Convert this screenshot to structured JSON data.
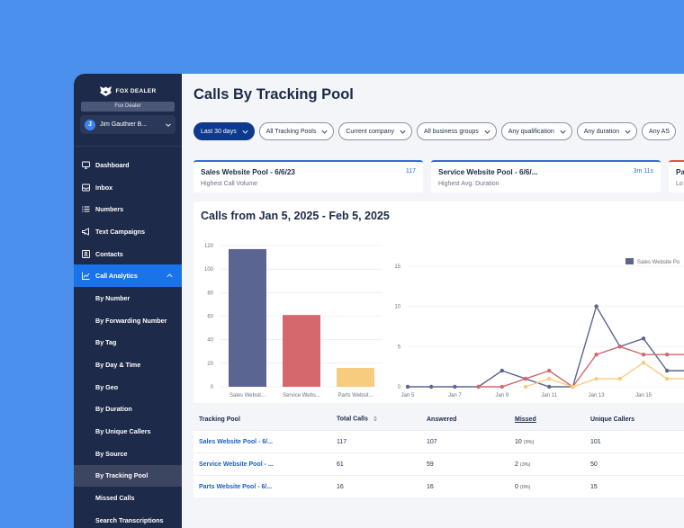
{
  "sidebar": {
    "logo_text": "FOX DEALER",
    "dealer": "Fox Dealer",
    "user_initial": "J",
    "user_name": "Jim Gauthier B...",
    "nav": [
      {
        "label": "Dashboard",
        "icon": "monitor-icon"
      },
      {
        "label": "Inbox",
        "icon": "inbox-icon"
      },
      {
        "label": "Numbers",
        "icon": "list-icon"
      },
      {
        "label": "Text Campaigns",
        "icon": "megaphone-icon"
      },
      {
        "label": "Contacts",
        "icon": "contact-card-icon"
      },
      {
        "label": "Call Analytics",
        "icon": "line-chart-icon"
      }
    ],
    "sub_items": [
      "By Number",
      "By Forwarding Number",
      "By Tag",
      "By Day & Time",
      "By Geo",
      "By Duration",
      "By Unique Callers",
      "By Source",
      "By Tracking Pool",
      "Missed Calls",
      "Search Transcriptions"
    ]
  },
  "page": {
    "title": "Calls By Tracking Pool"
  },
  "filters": [
    "Last 30 days",
    "All Tracking Pools",
    "Current company",
    "All business groups",
    "Any qualification",
    "Any duration",
    "Any AS"
  ],
  "cards": [
    {
      "title": "Sales Website Pool - 6/6/23",
      "value": "117",
      "sub": "Highest Call Volume"
    },
    {
      "title": "Service Website Pool - 6/6/...",
      "value": "3m 11s",
      "sub": "Highest Avg. Duration"
    },
    {
      "title": "Pa",
      "value": "",
      "sub": "Lo"
    }
  ],
  "chart_data": [
    {
      "type": "bar",
      "title": "Calls from Jan 5, 2025 - Feb 5, 2025",
      "categories": [
        "Sales Websit...",
        "Service Webs...",
        "Parts Websit..."
      ],
      "values": [
        117,
        61,
        16
      ],
      "yticks": [
        0,
        20,
        40,
        60,
        80,
        100,
        120
      ],
      "ylim": [
        0,
        120
      ],
      "colors": [
        "#5b6592",
        "#d4686c",
        "#f8cc7e"
      ],
      "grid": true
    },
    {
      "type": "line",
      "legend": "Sales Website Po",
      "legend_placement": "top-right",
      "x": [
        "Jan 5",
        "Jan 6",
        "Jan 7",
        "Jan 8",
        "Jan 9",
        "Jan 10",
        "Jan 11",
        "Jan 12",
        "Jan 13",
        "Jan 14",
        "Jan 15",
        "Jan 16",
        "Jan 17"
      ],
      "xticks": [
        "Jan 5",
        "Jan 7",
        "Jan 9",
        "Jan 11",
        "Jan 13",
        "Jan 15"
      ],
      "yticks": [
        0,
        5,
        10,
        15
      ],
      "ylim": [
        0,
        17
      ],
      "series": [
        {
          "name": "Sales Website Po",
          "color": "#5b6592",
          "values": [
            0,
            0,
            0,
            0,
            2,
            1,
            0,
            0,
            10,
            5,
            6,
            2,
            2
          ]
        },
        {
          "name": "",
          "color": "#d4686c",
          "values": [
            null,
            null,
            null,
            0,
            0,
            1,
            2,
            0,
            4,
            5,
            4,
            4,
            4
          ]
        },
        {
          "name": "",
          "color": "#f8cc7e",
          "values": [
            null,
            null,
            null,
            null,
            null,
            0,
            1,
            0,
            1,
            1,
            3,
            1,
            1
          ]
        }
      ]
    }
  ],
  "table": {
    "headers": [
      "Tracking Pool",
      "Total Calls",
      "Answered",
      "Missed",
      "Unique Callers"
    ],
    "rows": [
      {
        "pool": "Sales Website Pool - 6/...",
        "total": "117",
        "answered": "107",
        "missed": "10",
        "missed_pct": "(9%)",
        "unique": "101"
      },
      {
        "pool": "Service Website Pool - ...",
        "total": "61",
        "answered": "59",
        "missed": "2",
        "missed_pct": "(3%)",
        "unique": "50"
      },
      {
        "pool": "Parts Website Pool - 6/...",
        "total": "16",
        "answered": "16",
        "missed": "0",
        "missed_pct": "(0%)",
        "unique": "15"
      }
    ]
  }
}
